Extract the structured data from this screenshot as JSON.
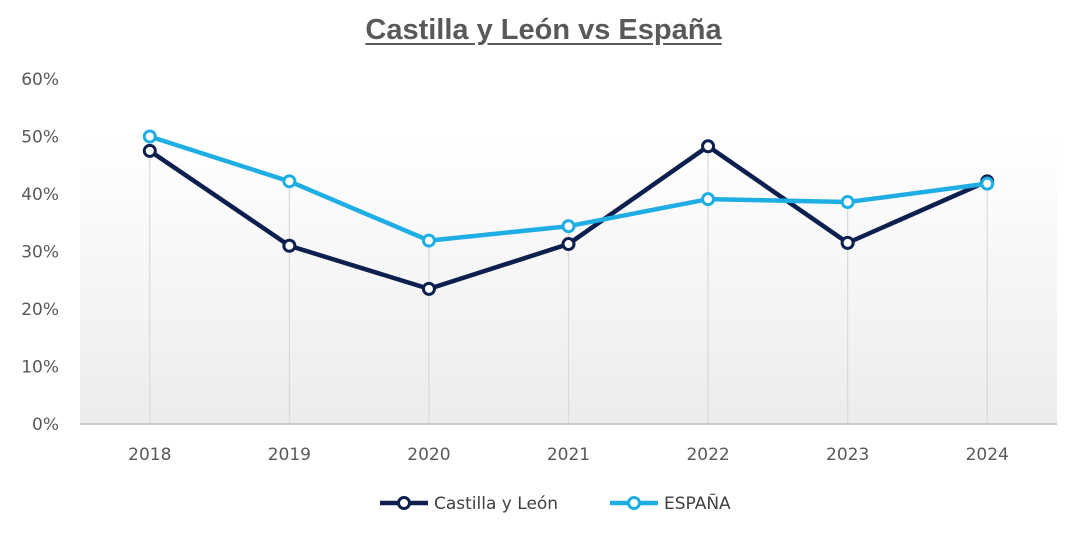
{
  "chart_data": {
    "type": "line",
    "title": "Castilla y León vs España",
    "xlabel": "",
    "ylabel": "",
    "categories": [
      "2018",
      "2019",
      "2020",
      "2021",
      "2022",
      "2023",
      "2024"
    ],
    "yticks": [
      "0%",
      "10%",
      "20%",
      "30%",
      "40%",
      "50%",
      "60%"
    ],
    "ylim": [
      0,
      0.6
    ],
    "y_format": "percent",
    "grid": "vertical drop lines only",
    "legend_position": "bottom",
    "series": [
      {
        "name": "Castilla y León",
        "color": "#0d1f4f",
        "values": [
          0.475,
          0.31,
          0.235,
          0.313,
          0.483,
          0.315,
          0.422
        ]
      },
      {
        "name": "ESPAÑA",
        "color": "#1eaee3",
        "values": [
          0.5,
          0.422,
          0.319,
          0.344,
          0.391,
          0.386,
          0.418
        ]
      }
    ]
  }
}
